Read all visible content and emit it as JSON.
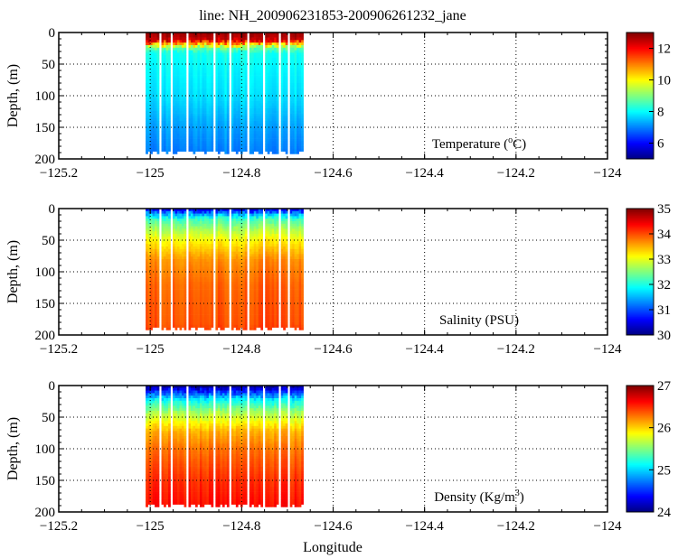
{
  "chart_data": {
    "type": "heatmap",
    "title": "line: NH_200906231853-200906261232_jane",
    "xlabel": "Longitude",
    "xlim": [
      -125.2,
      -124
    ],
    "xticks": [
      "-125.2",
      "-125",
      "-124.8",
      "-124.6",
      "-124.4",
      "-124.2",
      "-124"
    ],
    "xtick_values": [
      -125.2,
      -125,
      -124.8,
      -124.6,
      -124.4,
      -124.2,
      -124
    ],
    "grid": true,
    "data_extent": {
      "lon": [
        -125.01,
        -124.665
      ],
      "depth": [
        0,
        190
      ]
    },
    "gaps_lon": [
      -124.98,
      -124.955,
      -124.92,
      -124.86,
      -124.83,
      -124.79,
      -124.755,
      -124.72,
      -124.7
    ],
    "panels": [
      {
        "label": "Temperature (",
        "label_sup": "o",
        "label_end": "C)",
        "ylabel": "Depth, (m)",
        "ylim": [
          200,
          0
        ],
        "yticks": [
          "0",
          "50",
          "100",
          "150",
          "200"
        ],
        "ytick_values": [
          0,
          50,
          100,
          150,
          200
        ],
        "cbar_range": [
          5,
          13
        ],
        "cbar_ticks": [
          "6",
          "8",
          "10",
          "12"
        ],
        "cbar_tick_values": [
          6,
          8,
          10,
          12
        ],
        "profile_depth": [
          0,
          10,
          15,
          22,
          30,
          60,
          100,
          150,
          190
        ],
        "profile_value": [
          12.8,
          12.5,
          11,
          9,
          8.2,
          8.0,
          7.8,
          7.3,
          7.0
        ]
      },
      {
        "label": "Salinity (PSU)",
        "label_sup": "",
        "label_end": "",
        "ylabel": "Depth, (m)",
        "ylim": [
          200,
          0
        ],
        "yticks": [
          "0",
          "50",
          "100",
          "150",
          "200"
        ],
        "ytick_values": [
          0,
          50,
          100,
          150,
          200
        ],
        "cbar_range": [
          30,
          35
        ],
        "cbar_ticks": [
          "30",
          "31",
          "32",
          "33",
          "34",
          "35"
        ],
        "cbar_tick_values": [
          30,
          31,
          32,
          33,
          34,
          35
        ],
        "profile_depth": [
          0,
          5,
          15,
          30,
          50,
          80,
          120,
          180,
          190
        ],
        "profile_value": [
          30.6,
          31.3,
          32.2,
          32.7,
          33.2,
          33.7,
          33.9,
          34.0,
          34.1
        ]
      },
      {
        "label": "Density (Kg/m",
        "label_sup": "3",
        "label_end": ")",
        "ylabel": "Depth, (m)",
        "ylim": [
          200,
          0
        ],
        "yticks": [
          "0",
          "50",
          "100",
          "150",
          "200"
        ],
        "ytick_values": [
          0,
          50,
          100,
          150,
          200
        ],
        "cbar_range": [
          24,
          27
        ],
        "cbar_ticks": [
          "24",
          "25",
          "26",
          "27"
        ],
        "cbar_tick_values": [
          24,
          25,
          26,
          27
        ],
        "profile_depth": [
          0,
          8,
          20,
          40,
          70,
          100,
          150,
          190
        ],
        "profile_value": [
          24.1,
          24.5,
          25.1,
          25.6,
          26.1,
          26.3,
          26.5,
          26.6
        ]
      }
    ]
  }
}
